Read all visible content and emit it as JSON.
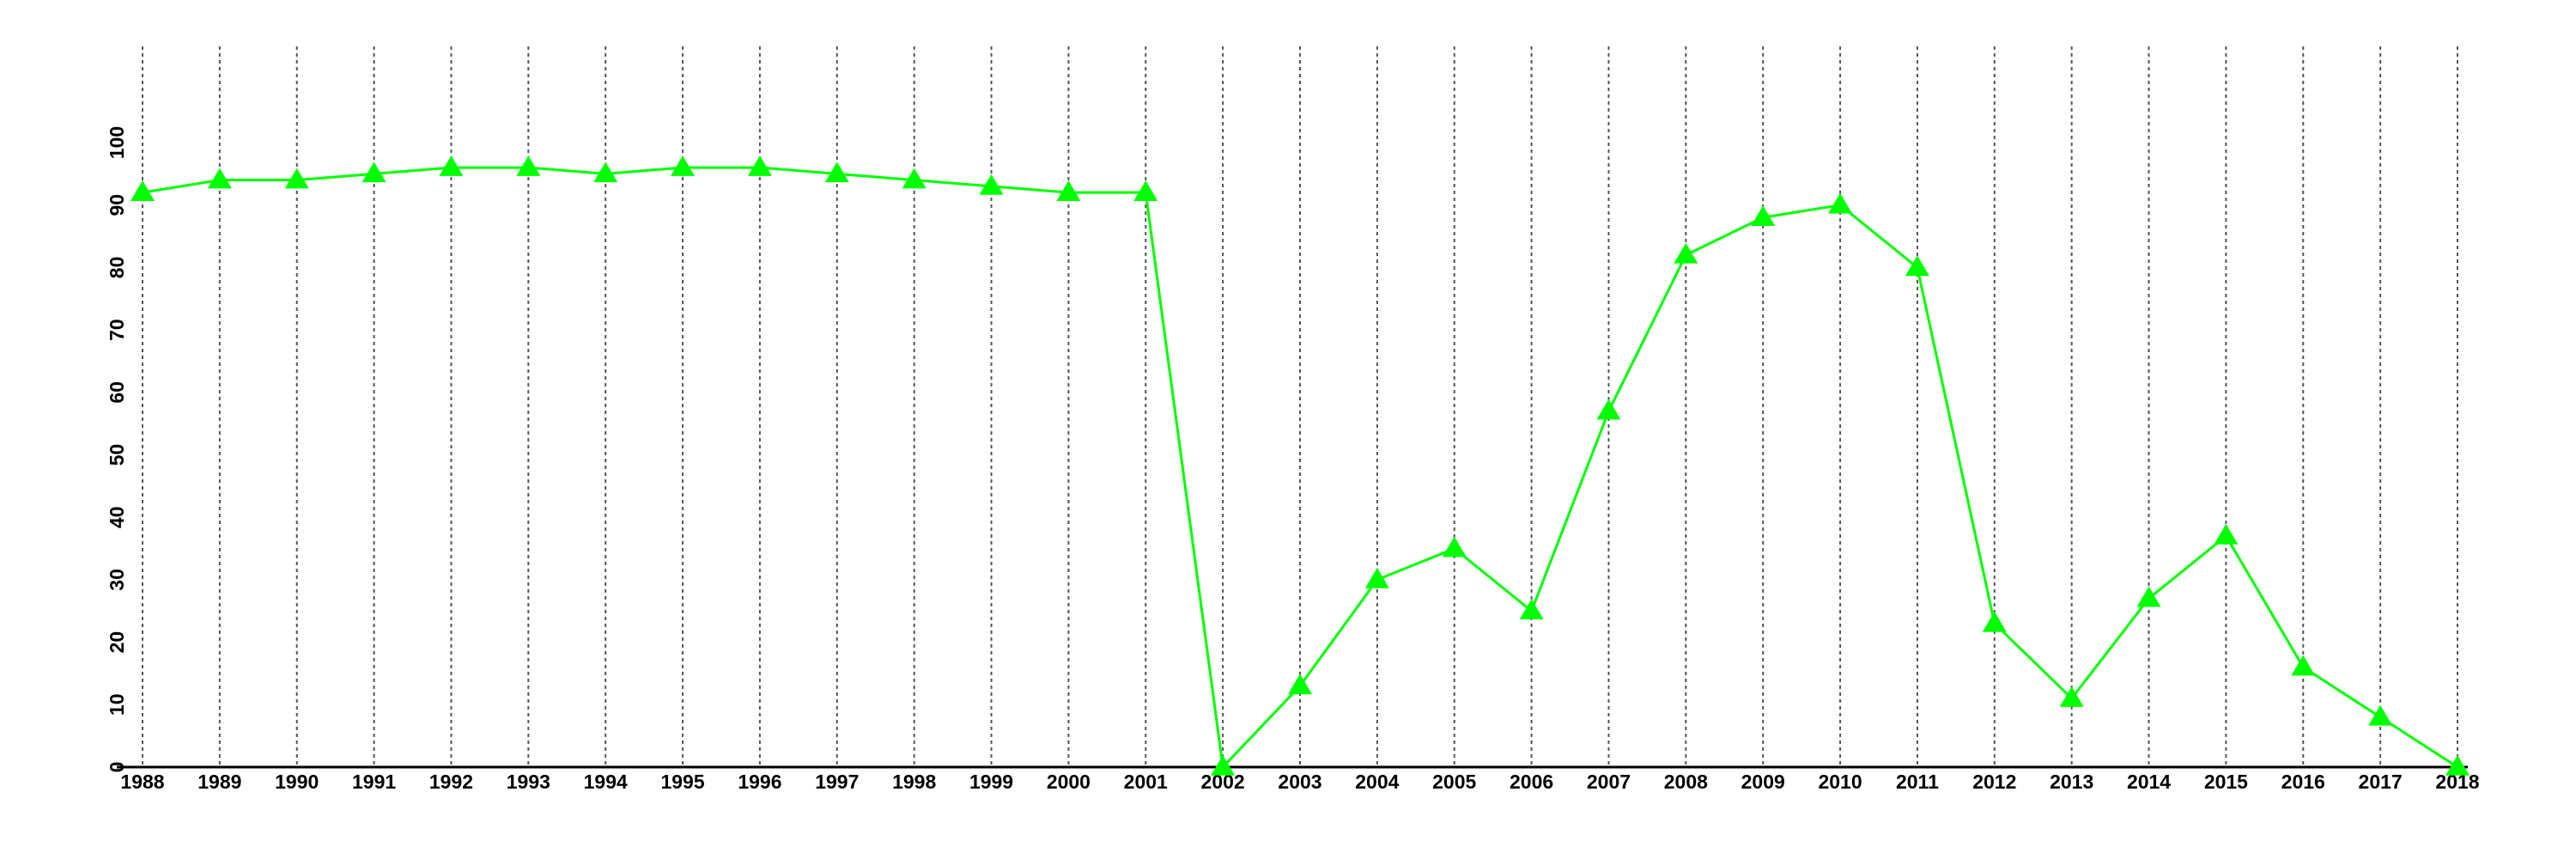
{
  "chart_data": {
    "type": "line",
    "x": [
      1988,
      1989,
      1990,
      1991,
      1992,
      1993,
      1994,
      1995,
      1996,
      1997,
      1998,
      1999,
      2000,
      2001,
      2002,
      2003,
      2004,
      2005,
      2006,
      2007,
      2008,
      2009,
      2010,
      2011,
      2012,
      2013,
      2014,
      2015,
      2016,
      2017,
      2018
    ],
    "values": [
      92,
      94,
      94,
      95,
      96,
      96,
      95,
      96,
      96,
      95,
      94,
      93,
      92,
      92,
      0,
      13,
      30,
      35,
      25,
      57,
      82,
      88,
      90,
      80,
      23,
      11,
      27,
      37,
      16,
      8,
      0
    ],
    "color": "#00ff00",
    "marker": "triangle",
    "xlim": [
      1988,
      2018
    ],
    "xticks": [
      1988,
      1989,
      1990,
      1991,
      1992,
      1993,
      1994,
      1995,
      1996,
      1997,
      1998,
      1999,
      2000,
      2001,
      2002,
      2003,
      2004,
      2005,
      2006,
      2007,
      2008,
      2009,
      2010,
      2011,
      2012,
      2013,
      2014,
      2015,
      2016,
      2017,
      2018
    ],
    "ylim": [
      0,
      100
    ],
    "yticks": [
      0,
      10,
      20,
      30,
      40,
      50,
      60,
      70,
      80,
      90,
      100
    ],
    "grid": true
  }
}
